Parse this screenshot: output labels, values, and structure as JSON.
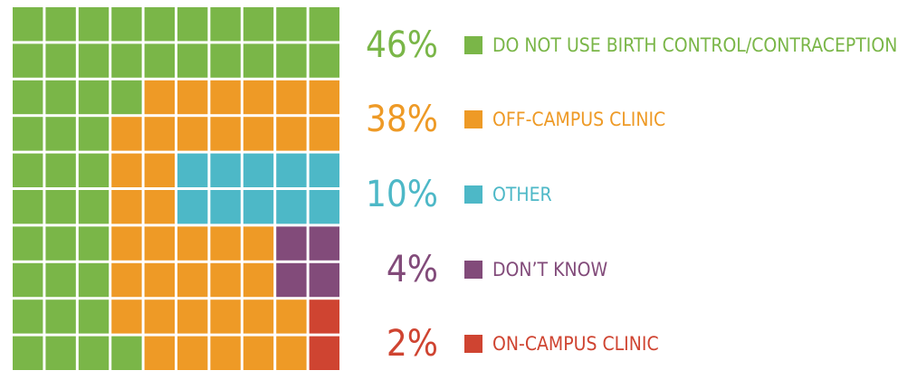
{
  "chart_data": {
    "type": "waffle",
    "categories": [
      "DO NOT USE BIRTH CONTROL/CONTRACEPTION",
      "OFF-CAMPUS CLINIC",
      "OTHER",
      "DON’T KNOW",
      "ON-CAMPUS CLINIC"
    ],
    "values": [
      46,
      38,
      10,
      4,
      2
    ],
    "value_labels": [
      "46%",
      "38%",
      "10%",
      "4%",
      "2%"
    ],
    "colors": [
      "#7ab648",
      "#ee9a26",
      "#4db8c7",
      "#824b7a",
      "#cf4431"
    ]
  }
}
